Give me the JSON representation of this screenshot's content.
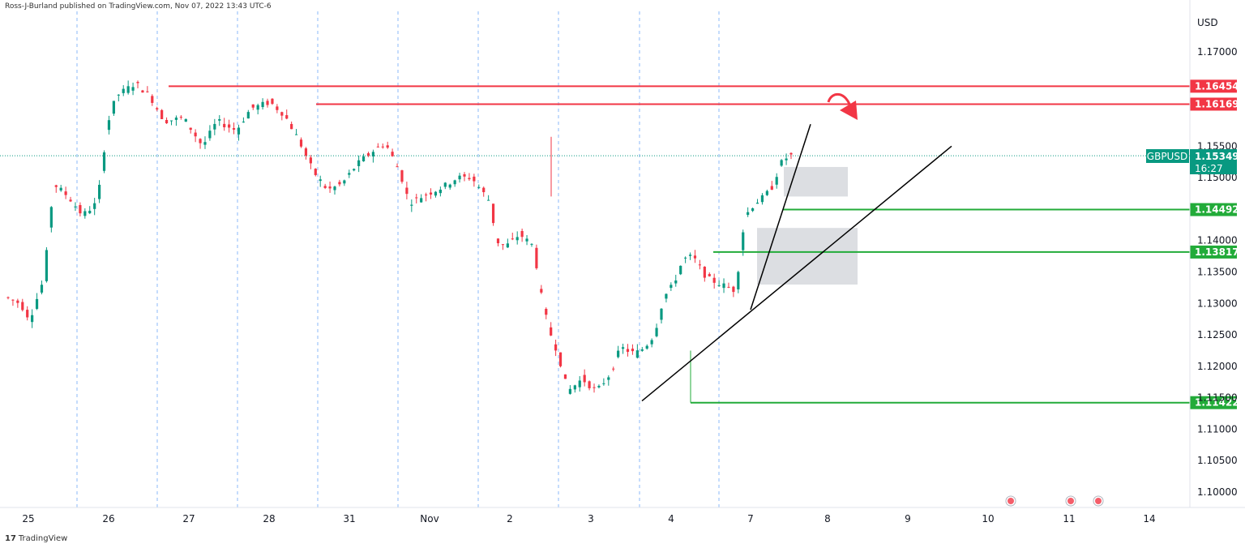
{
  "header": {
    "publisher_text": "Ross-J-Burland published on TradingView.com, Nov 07, 2022 13:43 UTC-6"
  },
  "footer": {
    "logo_text": "TradingView"
  },
  "chart_data": {
    "type": "candlestick",
    "symbol": "GBPUSD",
    "currency": "USD",
    "last_price": "1.15349",
    "countdown": "16:27",
    "ylim": [
      1.0965,
      1.1765
    ],
    "y_ticks": [
      "1.17000",
      "1.15500",
      "1.15000",
      "1.14000",
      "1.13500",
      "1.13000",
      "1.12500",
      "1.12000",
      "1.11500",
      "1.11000",
      "1.10500",
      "1.10000"
    ],
    "x_ticks": [
      "25",
      "26",
      "27",
      "28",
      "31",
      "Nov",
      "2",
      "3",
      "4",
      "7",
      "8",
      "9",
      "10",
      "11",
      "14"
    ],
    "levels": [
      {
        "label": "1.16454",
        "value": 1.16454,
        "color": "#f23645"
      },
      {
        "label": "1.16169",
        "value": 1.16169,
        "color": "#f23645"
      },
      {
        "label": "1.14492",
        "value": 1.14492,
        "color": "#22ab39"
      },
      {
        "label": "1.13817",
        "value": 1.13817,
        "color": "#22ab39"
      },
      {
        "label": "1.11422",
        "value": 1.11422,
        "color": "#22ab39"
      }
    ],
    "path": [
      [
        0,
        1.131
      ],
      [
        3,
        1.13
      ],
      [
        5,
        1.1275
      ],
      [
        8,
        1.134
      ],
      [
        9,
        1.142
      ],
      [
        10,
        1.149
      ],
      [
        13,
        1.147
      ],
      [
        16,
        1.144
      ],
      [
        19,
        1.146
      ],
      [
        20,
        1.151
      ],
      [
        21,
        1.158
      ],
      [
        23,
        1.163
      ],
      [
        27,
        1.165
      ],
      [
        30,
        1.163
      ],
      [
        33,
        1.159
      ],
      [
        37,
        1.1595
      ],
      [
        41,
        1.155
      ],
      [
        44,
        1.159
      ],
      [
        48,
        1.1575
      ],
      [
        51,
        1.161
      ],
      [
        55,
        1.162
      ],
      [
        58,
        1.16
      ],
      [
        61,
        1.156
      ],
      [
        64,
        1.151
      ],
      [
        67,
        1.148
      ],
      [
        70,
        1.149
      ],
      [
        73,
        1.152
      ],
      [
        76,
        1.154
      ],
      [
        79,
        1.1555
      ],
      [
        82,
        1.151
      ],
      [
        84,
        1.146
      ],
      [
        88,
        1.1475
      ],
      [
        91,
        1.1485
      ],
      [
        94,
        1.15
      ],
      [
        97,
        1.15
      ],
      [
        99,
        1.148
      ],
      [
        101,
        1.146
      ],
      [
        102,
        1.14
      ],
      [
        104,
        1.139
      ],
      [
        107,
        1.141
      ],
      [
        110,
        1.139
      ],
      [
        111,
        1.133
      ],
      [
        113,
        1.126
      ],
      [
        115,
        1.122
      ],
      [
        117,
        1.116
      ],
      [
        120,
        1.118
      ],
      [
        123,
        1.116
      ],
      [
        126,
        1.119
      ],
      [
        128,
        1.123
      ],
      [
        131,
        1.122
      ],
      [
        133,
        1.123
      ],
      [
        135,
        1.125
      ],
      [
        137,
        1.131
      ],
      [
        139,
        1.133
      ],
      [
        141,
        1.137
      ],
      [
        143,
        1.1375
      ],
      [
        146,
        1.134
      ],
      [
        149,
        1.133
      ],
      [
        152,
        1.132
      ],
      [
        153,
        1.139
      ],
      [
        154,
        1.144
      ],
      [
        156,
        1.146
      ],
      [
        158,
        1.147
      ],
      [
        160,
        1.149
      ],
      [
        161,
        1.152
      ],
      [
        163,
        1.1535
      ]
    ]
  }
}
